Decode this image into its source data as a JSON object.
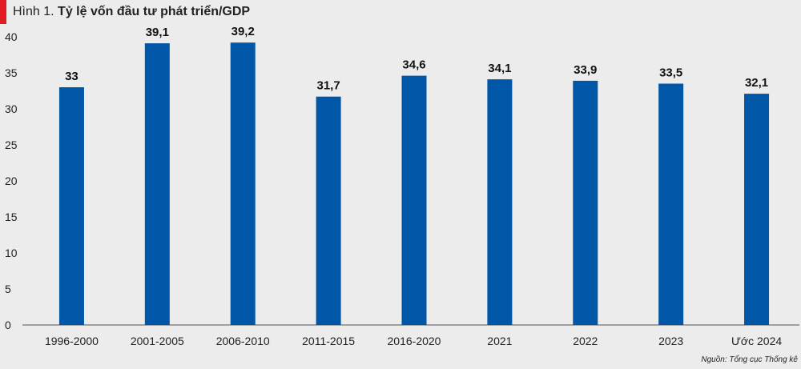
{
  "header": {
    "prefix": "Hình 1.",
    "title": "Tỷ lệ vốn đầu tư phát triển/GDP"
  },
  "source": "Nguồn: Tổng cục Thống kê",
  "colors": {
    "bar": "#0057a8",
    "accent": "#e31b23",
    "background": "#ececec"
  },
  "chart_data": {
    "type": "bar",
    "title": "Tỷ lệ vốn đầu tư phát triển/GDP",
    "categories": [
      "1996-2000",
      "2001-2005",
      "2006-2010",
      "2011-2015",
      "2016-2020",
      "2021",
      "2022",
      "2023",
      "Ước 2024"
    ],
    "values": [
      33,
      39.1,
      39.2,
      31.7,
      34.6,
      34.1,
      33.9,
      33.5,
      32.1
    ],
    "value_labels": [
      "33",
      "39,1",
      "39,2",
      "31,7",
      "34,6",
      "34,1",
      "33,9",
      "33,5",
      "32,1"
    ],
    "ylim": [
      0,
      40
    ],
    "yticks": [
      0,
      5,
      10,
      15,
      20,
      25,
      30,
      35,
      40
    ],
    "grid": false
  }
}
